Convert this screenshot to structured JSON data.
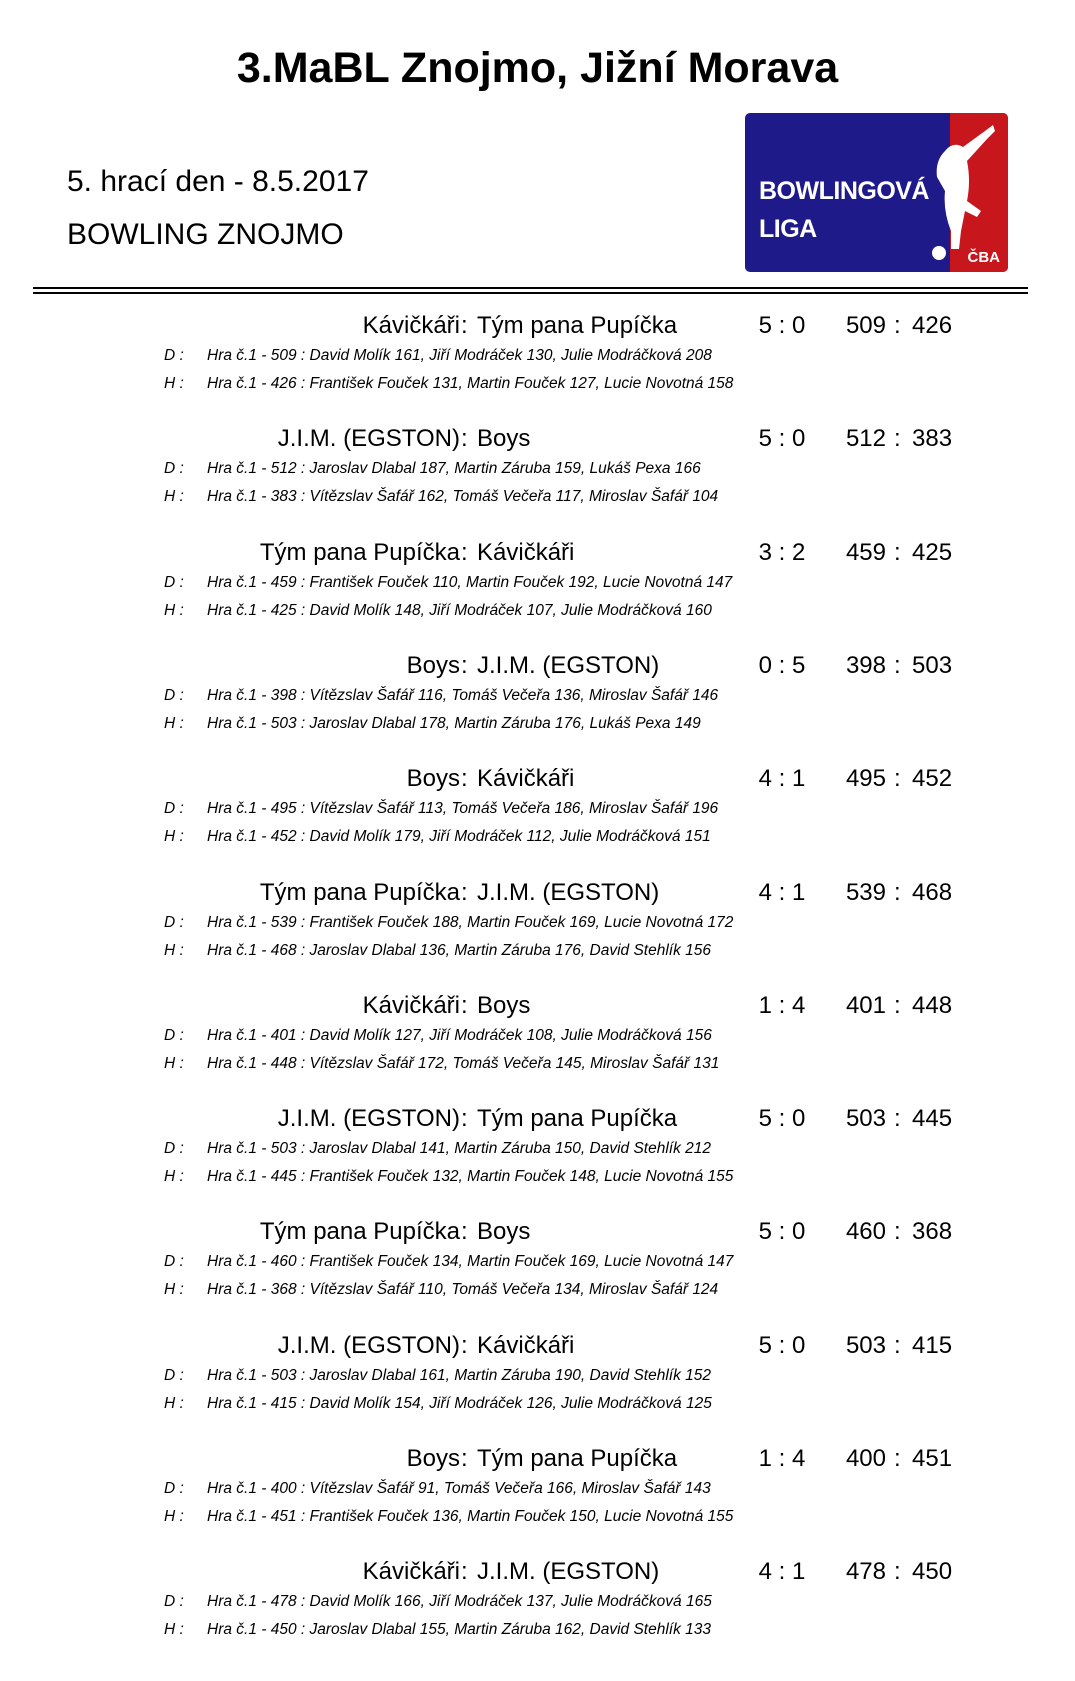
{
  "title": "3.MaBL Znojmo, Jižní Morava",
  "subtitle_date": "5. hrací den - 8.5.2017",
  "subtitle_venue": "BOWLING ZNOJMO",
  "logo": {
    "line1": "BOWLINGOVÁ",
    "line2": "LIGA",
    "badge": "ČBA",
    "colors": {
      "blue": "#1f1a8a",
      "red": "#c8161d"
    }
  },
  "separator": ":",
  "labels": {
    "home": "D :",
    "away": "H :"
  },
  "matches": [
    {
      "home": "Kávičkáři",
      "away": "Tým pana Pupíčka",
      "score": "5 : 0",
      "home_total": "509",
      "away_total": "426",
      "d": "Hra č.1 - 509 : David Molík 161, Jiří Modráček 130, Julie Modráčková 208",
      "h": "Hra č.1 - 426 : František Fouček 131, Martin Fouček 127, Lucie Novotná 158"
    },
    {
      "home": "J.I.M. (EGSTON)",
      "away": "Boys",
      "score": "5 : 0",
      "home_total": "512",
      "away_total": "383",
      "d": "Hra č.1 - 512 : Jaroslav Dlabal 187, Martin Záruba 159, Lukáš Pexa 166",
      "h": "Hra č.1 - 383 : Vítězslav Šafář 162, Tomáš Večeřa 117, Miroslav Šafář 104"
    },
    {
      "home": "Tým pana Pupíčka",
      "away": "Kávičkáři",
      "score": "3 : 2",
      "home_total": "459",
      "away_total": "425",
      "d": "Hra č.1 - 459 : František Fouček 110, Martin Fouček 192, Lucie Novotná 147",
      "h": "Hra č.1 - 425 : David Molík 148, Jiří Modráček 107, Julie Modráčková 160"
    },
    {
      "home": "Boys",
      "away": "J.I.M. (EGSTON)",
      "score": "0 : 5",
      "home_total": "398",
      "away_total": "503",
      "d": "Hra č.1 - 398 : Vítězslav Šafář 116, Tomáš Večeřa 136, Miroslav Šafář 146",
      "h": "Hra č.1 - 503 : Jaroslav Dlabal 178, Martin Záruba 176, Lukáš Pexa 149"
    },
    {
      "home": "Boys",
      "away": "Kávičkáři",
      "score": "4 : 1",
      "home_total": "495",
      "away_total": "452",
      "d": "Hra č.1 - 495 : Vítězslav Šafář 113, Tomáš Večeřa 186, Miroslav Šafář 196",
      "h": "Hra č.1 - 452 : David Molík 179, Jiří Modráček 112, Julie Modráčková 151"
    },
    {
      "home": "Tým pana Pupíčka",
      "away": "J.I.M. (EGSTON)",
      "score": "4 : 1",
      "home_total": "539",
      "away_total": "468",
      "d": "Hra č.1 - 539 : František Fouček 188, Martin Fouček 169, Lucie Novotná 172",
      "h": "Hra č.1 - 468 : Jaroslav Dlabal 136, Martin Záruba 176, David Stehlík 156"
    },
    {
      "home": "Kávičkáři",
      "away": "Boys",
      "score": "1 : 4",
      "home_total": "401",
      "away_total": "448",
      "d": "Hra č.1 - 401 : David Molík 127, Jiří Modráček 108, Julie Modráčková 156",
      "h": "Hra č.1 - 448 : Vítězslav Šafář 172, Tomáš Večeřa 145, Miroslav Šafář 131"
    },
    {
      "home": "J.I.M. (EGSTON)",
      "away": "Tým pana Pupíčka",
      "score": "5 : 0",
      "home_total": "503",
      "away_total": "445",
      "d": "Hra č.1 - 503 : Jaroslav Dlabal 141, Martin Záruba 150, David Stehlík 212",
      "h": "Hra č.1 - 445 : František Fouček 132, Martin Fouček 148, Lucie Novotná 155"
    },
    {
      "home": "Tým pana Pupíčka",
      "away": "Boys",
      "score": "5 : 0",
      "home_total": "460",
      "away_total": "368",
      "d": "Hra č.1 - 460 : František Fouček 134, Martin Fouček 169, Lucie Novotná 147",
      "h": "Hra č.1 - 368 : Vítězslav Šafář 110, Tomáš Večeřa 134, Miroslav Šafář 124"
    },
    {
      "home": "J.I.M. (EGSTON)",
      "away": "Kávičkáři",
      "score": "5 : 0",
      "home_total": "503",
      "away_total": "415",
      "d": "Hra č.1 - 503 : Jaroslav Dlabal 161, Martin Záruba 190, David Stehlík 152",
      "h": "Hra č.1 - 415 : David Molík 154, Jiří Modráček 126, Julie Modráčková 125"
    },
    {
      "home": "Boys",
      "away": "Tým pana Pupíčka",
      "score": "1 : 4",
      "home_total": "400",
      "away_total": "451",
      "d": "Hra č.1 - 400 : Vítězslav Šafář 91, Tomáš Večeřa 166, Miroslav Šafář 143",
      "h": "Hra č.1 - 451 : František Fouček 136, Martin Fouček 150, Lucie Novotná 155"
    },
    {
      "home": "Kávičkáři",
      "away": "J.I.M. (EGSTON)",
      "score": "4 : 1",
      "home_total": "478",
      "away_total": "450",
      "d": "Hra č.1 - 478 : David Molík 166, Jiří Modráček 137, Julie Modráčková 165",
      "h": "Hra č.1 - 450 : Jaroslav Dlabal 155, Martin Záruba 162, David Stehlík 133"
    }
  ]
}
